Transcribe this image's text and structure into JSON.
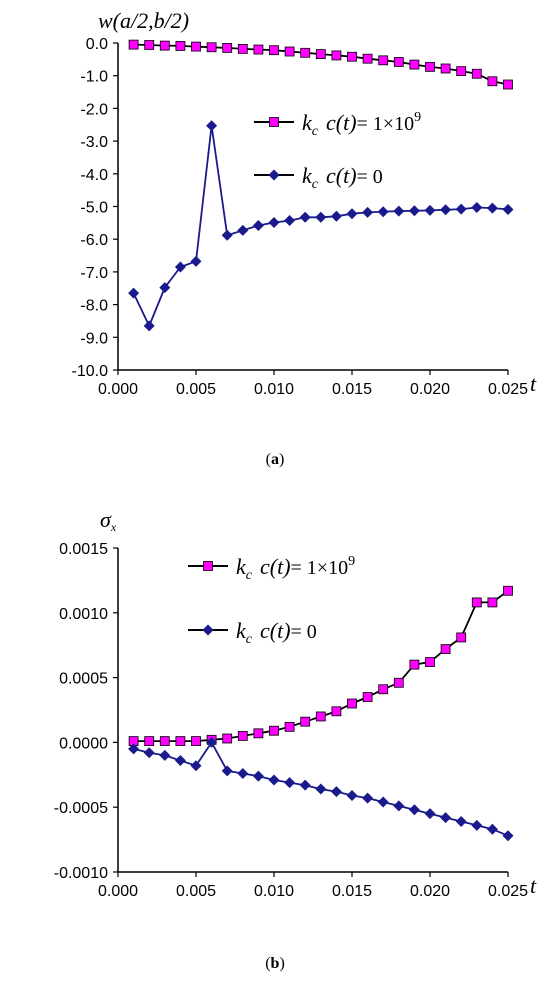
{
  "chart_data": [
    {
      "type": "line",
      "panel": "a",
      "ylabel": "w(a/2,b/2)",
      "xlabel": "t",
      "ylim": [
        -10.0,
        0.0
      ],
      "xlim": [
        0.0,
        0.025
      ],
      "yticks": [
        "0.0",
        "-1.0",
        "-2.0",
        "-3.0",
        "-4.0",
        "-5.0",
        "-6.0",
        "-7.0",
        "-8.0",
        "-9.0",
        "-10.0"
      ],
      "xticks": [
        "0.000",
        "0.005",
        "0.010",
        "0.015",
        "0.020",
        "0.025"
      ],
      "caption": "a",
      "legend_position": "top-right",
      "x": [
        0.001,
        0.002,
        0.003,
        0.004,
        0.005,
        0.006,
        0.007,
        0.008,
        0.009,
        0.01,
        0.011,
        0.012,
        0.013,
        0.014,
        0.015,
        0.016,
        0.017,
        0.018,
        0.019,
        0.02,
        0.021,
        0.022,
        0.023,
        0.024,
        0.025
      ],
      "series": [
        {
          "legend": "k_c c(t) = 1×10⁹",
          "legend_parts": {
            "k": "k",
            "sub": "c",
            "rest": "c(t)",
            "eq": "= 1×10",
            "sup": "9"
          },
          "color": "#ff00ff",
          "marker": "square",
          "values": [
            -0.05,
            -0.06,
            -0.08,
            -0.09,
            -0.11,
            -0.13,
            -0.15,
            -0.18,
            -0.2,
            -0.22,
            -0.26,
            -0.3,
            -0.34,
            -0.38,
            -0.42,
            -0.48,
            -0.53,
            -0.58,
            -0.66,
            -0.73,
            -0.78,
            -0.86,
            -0.94,
            -1.17,
            -1.27
          ]
        },
        {
          "legend": "k_c c(t) = 0",
          "legend_parts": {
            "k": "k",
            "sub": "c",
            "rest": "c(t)",
            "eq": "= 0",
            "sup": ""
          },
          "color": "#1a1a8c",
          "marker": "diamond",
          "values": [
            -7.65,
            -8.65,
            -7.48,
            -6.85,
            -6.68,
            -2.53,
            -5.88,
            -5.73,
            -5.58,
            -5.49,
            -5.43,
            -5.33,
            -5.33,
            -5.3,
            -5.22,
            -5.18,
            -5.16,
            -5.14,
            -5.13,
            -5.12,
            -5.1,
            -5.08,
            -5.03,
            -5.05,
            -5.09
          ]
        }
      ]
    },
    {
      "type": "line",
      "panel": "b",
      "ylabel": "σ_x",
      "xlabel": "t",
      "ylim": [
        -0.001,
        0.0015
      ],
      "xlim": [
        0.0,
        0.025
      ],
      "yticks": [
        "0.0015",
        "0.0010",
        "0.0005",
        "0.0000",
        "-0.0005",
        "-0.0010"
      ],
      "xticks": [
        "0.000",
        "0.005",
        "0.010",
        "0.015",
        "0.020",
        "0.025"
      ],
      "caption": "b",
      "legend_position": "top-left",
      "x": [
        0.001,
        0.002,
        0.003,
        0.004,
        0.005,
        0.006,
        0.007,
        0.008,
        0.009,
        0.01,
        0.011,
        0.012,
        0.013,
        0.014,
        0.015,
        0.016,
        0.017,
        0.018,
        0.019,
        0.02,
        0.021,
        0.022,
        0.023,
        0.024,
        0.025
      ],
      "series": [
        {
          "legend": "k_c c(t) = 1×10⁹",
          "legend_parts": {
            "k": "k",
            "sub": "c",
            "rest": "c(t)",
            "eq": "= 1×10",
            "sup": "9"
          },
          "color": "#ff00ff",
          "marker": "square",
          "values": [
            1e-05,
            1e-05,
            1e-05,
            1e-05,
            1e-05,
            2e-05,
            3e-05,
            5e-05,
            7e-05,
            9e-05,
            0.00012,
            0.00016,
            0.0002,
            0.00024,
            0.0003,
            0.00035,
            0.00041,
            0.00046,
            0.0006,
            0.00062,
            0.00072,
            0.00081,
            0.00108,
            0.00108,
            0.00117
          ]
        },
        {
          "legend": "k_c c(t) = 0",
          "legend_parts": {
            "k": "k",
            "sub": "c",
            "rest": "c(t)",
            "eq": "= 0",
            "sup": ""
          },
          "color": "#1a1a8c",
          "marker": "diamond",
          "values": [
            -5e-05,
            -8e-05,
            -0.0001,
            -0.00014,
            -0.00018,
            0.0,
            -0.00022,
            -0.00024,
            -0.00026,
            -0.00029,
            -0.00031,
            -0.00033,
            -0.00036,
            -0.00038,
            -0.00041,
            -0.00043,
            -0.00046,
            -0.00049,
            -0.00052,
            -0.00055,
            -0.00058,
            -0.00061,
            -0.00064,
            -0.00067,
            -0.00072
          ]
        }
      ]
    }
  ]
}
